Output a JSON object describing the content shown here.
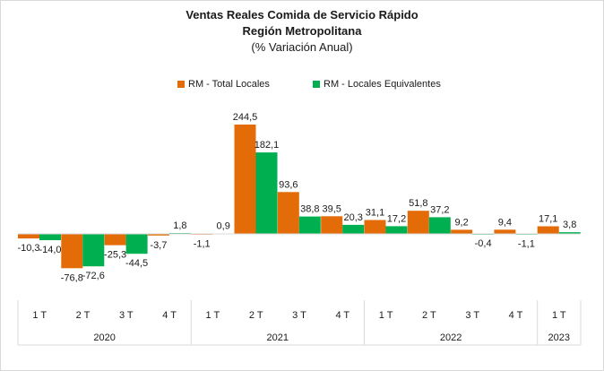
{
  "chart_data": {
    "type": "bar",
    "title": "Ventas Reales Comida de Servicio Rápido",
    "subtitle": "Región Metropolitana",
    "subtitle2": "(% Variación Anual)",
    "quarters": [
      "1 T",
      "2 T",
      "3 T",
      "4 T",
      "1 T",
      "2 T",
      "3 T",
      "4 T",
      "1 T",
      "2 T",
      "3 T",
      "4 T",
      "1 T"
    ],
    "year_groups": [
      {
        "label": "2020",
        "count": 4
      },
      {
        "label": "2021",
        "count": 4
      },
      {
        "label": "2022",
        "count": 4
      },
      {
        "label": "2023",
        "count": 1
      }
    ],
    "series": [
      {
        "name": "RM - Total Locales",
        "color": "#e36c09",
        "values": [
          -10.3,
          -76.8,
          -25.3,
          -3.7,
          -1.1,
          244.5,
          93.6,
          39.5,
          31.1,
          51.8,
          9.2,
          9.4,
          17.1
        ],
        "labels": [
          "-10,3",
          "-76,8",
          "-25,3",
          "-3,7",
          "-1,1",
          "244,5",
          "93,6",
          "39,5",
          "31,1",
          "51,8",
          "9,2",
          "9,4",
          "17,1"
        ]
      },
      {
        "name": "RM - Locales Equivalentes",
        "color": "#00b050",
        "values": [
          -14.0,
          -72.6,
          -44.5,
          1.8,
          0.9,
          182.1,
          38.8,
          20.3,
          17.2,
          37.2,
          -0.4,
          -1.1,
          3.8
        ],
        "labels": [
          "-14,0",
          "-72,6",
          "-44,5",
          "1,8",
          "0,9",
          "182,1",
          "38,8",
          "20,3",
          "17,2",
          "37,2",
          "-0,4",
          "-1,1",
          "3,8"
        ]
      }
    ],
    "legend_position": "top",
    "grid": false
  }
}
